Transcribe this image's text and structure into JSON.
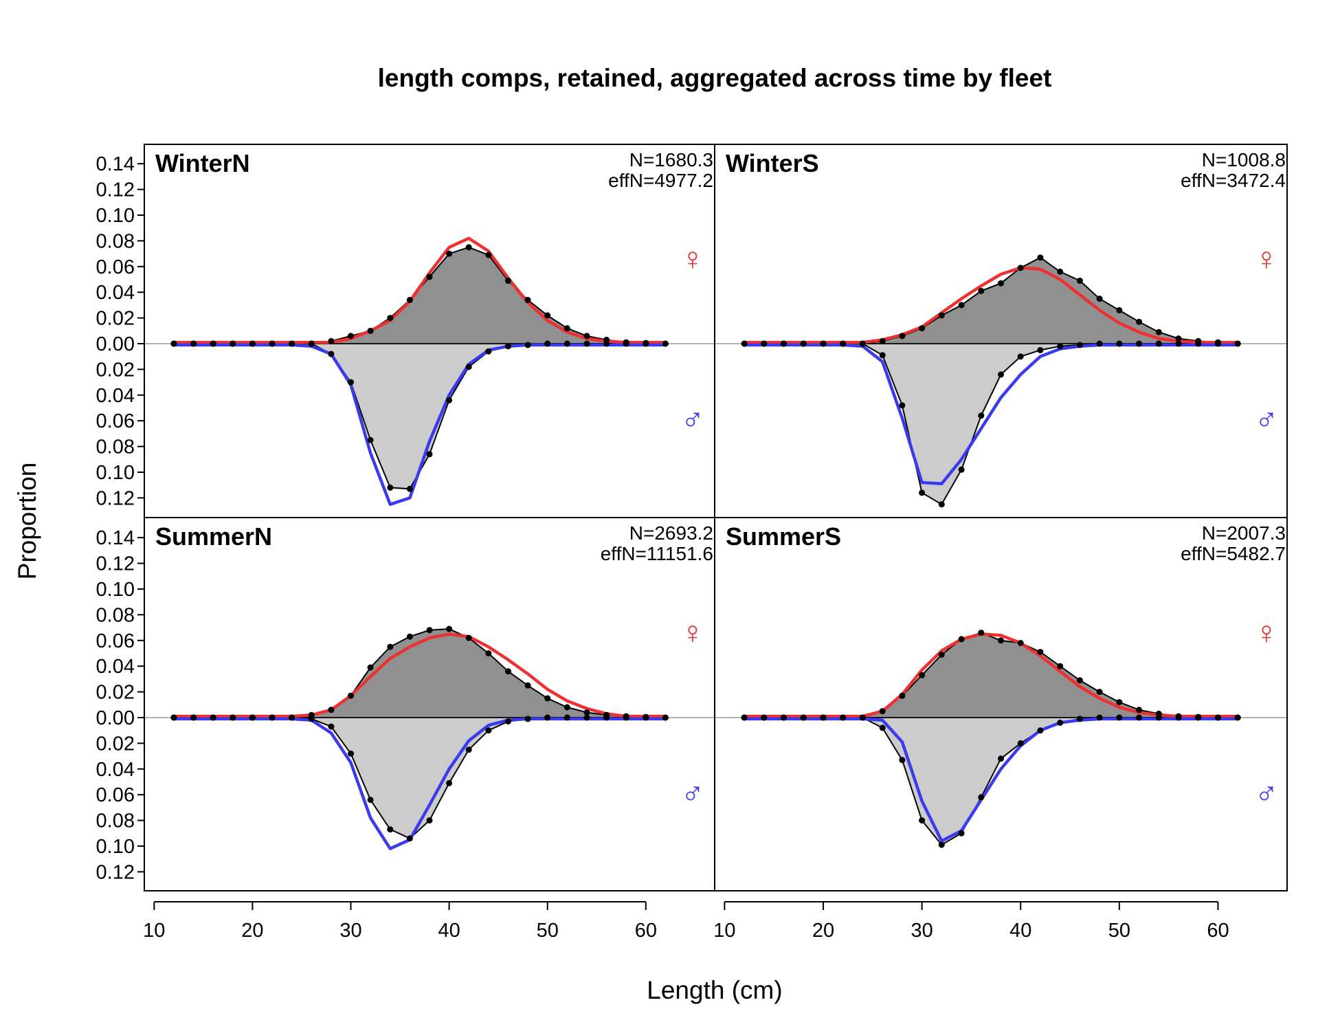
{
  "chart_data": {
    "type": "area",
    "title": "length comps, retained, aggregated across time by fleet",
    "xlabel": "Length (cm)",
    "ylabel": "Proportion",
    "xlim": [
      9,
      67
    ],
    "x_ticks": [
      10,
      20,
      30,
      40,
      50,
      60
    ],
    "x_tick_labels": [
      "10",
      "20",
      "30",
      "40",
      "50",
      "60"
    ],
    "ylim_top": [
      0,
      0.15
    ],
    "ylim_bottom": [
      0,
      0.13
    ],
    "y_ticks_top": [
      0.14,
      0.12,
      0.1,
      0.08,
      0.06,
      0.04,
      0.02,
      0.0
    ],
    "y_ticks_top_labels": [
      "0.14",
      "0.12",
      "0.10",
      "0.08",
      "0.06",
      "0.04",
      "0.02",
      "0.00"
    ],
    "y_ticks_bottom": [
      0.02,
      0.04,
      0.06,
      0.08,
      0.1,
      0.12
    ],
    "y_ticks_bottom_labels": [
      "0.02",
      "0.04",
      "0.06",
      "0.08",
      "0.10",
      "0.12"
    ],
    "colors": {
      "female_fill": "#909090",
      "male_fill": "#cccccc",
      "female_expected": "#ee3030",
      "male_expected": "#3a3aee",
      "observed": "#000000",
      "zero_line": "#b4b4b4"
    },
    "female_symbol": "♀",
    "male_symbol": "♂",
    "x": [
      12,
      14,
      16,
      18,
      20,
      22,
      24,
      26,
      28,
      30,
      32,
      34,
      36,
      38,
      40,
      42,
      44,
      46,
      48,
      50,
      52,
      54,
      56,
      58,
      60,
      62
    ],
    "panels": [
      {
        "name": "WinterN",
        "n_text": "N=1680.3",
        "effn_text": "effN=4977.2",
        "female_obs": [
          0,
          0,
          0,
          0,
          0,
          0,
          0,
          0,
          0.002,
          0.006,
          0.01,
          0.02,
          0.034,
          0.052,
          0.07,
          0.075,
          0.069,
          0.049,
          0.034,
          0.022,
          0.012,
          0.006,
          0.003,
          0.001,
          0.0005,
          0
        ],
        "female_exp": [
          0.001,
          0.001,
          0.001,
          0.001,
          0.001,
          0.001,
          0.001,
          0.001,
          0.001,
          0.004,
          0.01,
          0.018,
          0.033,
          0.055,
          0.075,
          0.082,
          0.072,
          0.051,
          0.032,
          0.018,
          0.009,
          0.004,
          0.002,
          0.001,
          0.001,
          0.001
        ],
        "male_obs": [
          0,
          0,
          0,
          0,
          0,
          0,
          0,
          0,
          0.008,
          0.03,
          0.075,
          0.112,
          0.113,
          0.086,
          0.044,
          0.018,
          0.006,
          0.002,
          0.001,
          0,
          0,
          0,
          0,
          0,
          0,
          0
        ],
        "male_exp": [
          0.001,
          0.001,
          0.001,
          0.001,
          0.001,
          0.001,
          0.001,
          0.002,
          0.008,
          0.032,
          0.085,
          0.125,
          0.12,
          0.076,
          0.04,
          0.016,
          0.005,
          0.002,
          0.001,
          0.001,
          0.001,
          0.001,
          0.001,
          0.001,
          0.001,
          0.001
        ]
      },
      {
        "name": "WinterS",
        "n_text": "N=1008.8",
        "effn_text": "effN=3472.4",
        "female_obs": [
          0,
          0,
          0,
          0,
          0,
          0,
          0,
          0.002,
          0.006,
          0.012,
          0.022,
          0.03,
          0.041,
          0.047,
          0.059,
          0.067,
          0.056,
          0.049,
          0.035,
          0.026,
          0.017,
          0.009,
          0.004,
          0.002,
          0.001,
          0
        ],
        "female_exp": [
          0.001,
          0.001,
          0.001,
          0.001,
          0.001,
          0.001,
          0.001,
          0.003,
          0.007,
          0.013,
          0.024,
          0.035,
          0.045,
          0.054,
          0.059,
          0.058,
          0.05,
          0.038,
          0.026,
          0.016,
          0.009,
          0.004,
          0.002,
          0.001,
          0.001,
          0.001
        ],
        "male_obs": [
          0,
          0,
          0,
          0,
          0,
          0,
          0,
          0.009,
          0.048,
          0.116,
          0.125,
          0.098,
          0.056,
          0.024,
          0.01,
          0.005,
          0.002,
          0.001,
          0,
          0,
          0,
          0,
          0,
          0,
          0,
          0
        ],
        "male_exp": [
          0.001,
          0.001,
          0.001,
          0.001,
          0.001,
          0.001,
          0.002,
          0.014,
          0.058,
          0.108,
          0.109,
          0.09,
          0.066,
          0.042,
          0.024,
          0.01,
          0.004,
          0.002,
          0.001,
          0.001,
          0.001,
          0.001,
          0.001,
          0.001,
          0.001,
          0.001
        ]
      },
      {
        "name": "SummerN",
        "n_text": "N=2693.2",
        "effn_text": "effN=11151.6",
        "female_obs": [
          0,
          0,
          0,
          0,
          0,
          0,
          0,
          0.002,
          0.006,
          0.017,
          0.039,
          0.055,
          0.063,
          0.068,
          0.069,
          0.062,
          0.05,
          0.036,
          0.025,
          0.015,
          0.008,
          0.004,
          0.002,
          0.001,
          0.0005,
          0
        ],
        "female_exp": [
          0.001,
          0.001,
          0.001,
          0.001,
          0.001,
          0.001,
          0.001,
          0.002,
          0.006,
          0.017,
          0.032,
          0.046,
          0.055,
          0.062,
          0.065,
          0.063,
          0.055,
          0.045,
          0.034,
          0.022,
          0.013,
          0.007,
          0.003,
          0.001,
          0.001,
          0.001
        ],
        "male_obs": [
          0,
          0,
          0,
          0,
          0,
          0,
          0,
          0.001,
          0.007,
          0.028,
          0.064,
          0.087,
          0.094,
          0.08,
          0.051,
          0.025,
          0.01,
          0.003,
          0.001,
          0,
          0,
          0,
          0,
          0,
          0,
          0
        ],
        "male_exp": [
          0.001,
          0.001,
          0.001,
          0.001,
          0.001,
          0.001,
          0.001,
          0.002,
          0.012,
          0.035,
          0.078,
          0.102,
          0.095,
          0.068,
          0.04,
          0.018,
          0.006,
          0.002,
          0.001,
          0.001,
          0.001,
          0.001,
          0.001,
          0.001,
          0.001,
          0.001
        ]
      },
      {
        "name": "SummerS",
        "n_text": "N=2007.3",
        "effn_text": "effN=5482.7",
        "female_obs": [
          0,
          0,
          0,
          0,
          0,
          0,
          0,
          0.005,
          0.017,
          0.033,
          0.049,
          0.061,
          0.066,
          0.06,
          0.058,
          0.051,
          0.04,
          0.029,
          0.02,
          0.012,
          0.006,
          0.003,
          0.001,
          0.0005,
          0,
          0
        ],
        "female_exp": [
          0.001,
          0.001,
          0.001,
          0.001,
          0.001,
          0.001,
          0.001,
          0.005,
          0.018,
          0.037,
          0.052,
          0.061,
          0.065,
          0.064,
          0.058,
          0.048,
          0.036,
          0.024,
          0.015,
          0.008,
          0.004,
          0.002,
          0.001,
          0.001,
          0.001,
          0.001
        ],
        "male_obs": [
          0,
          0,
          0,
          0,
          0,
          0,
          0,
          0.008,
          0.033,
          0.08,
          0.099,
          0.09,
          0.062,
          0.032,
          0.02,
          0.01,
          0.004,
          0.001,
          0,
          0,
          0,
          0,
          0,
          0,
          0,
          0
        ],
        "male_exp": [
          0.001,
          0.001,
          0.001,
          0.001,
          0.001,
          0.001,
          0.001,
          0.002,
          0.019,
          0.065,
          0.096,
          0.088,
          0.064,
          0.04,
          0.022,
          0.01,
          0.004,
          0.002,
          0.001,
          0.001,
          0.001,
          0.001,
          0.001,
          0.001,
          0.001,
          0.001
        ]
      }
    ]
  }
}
